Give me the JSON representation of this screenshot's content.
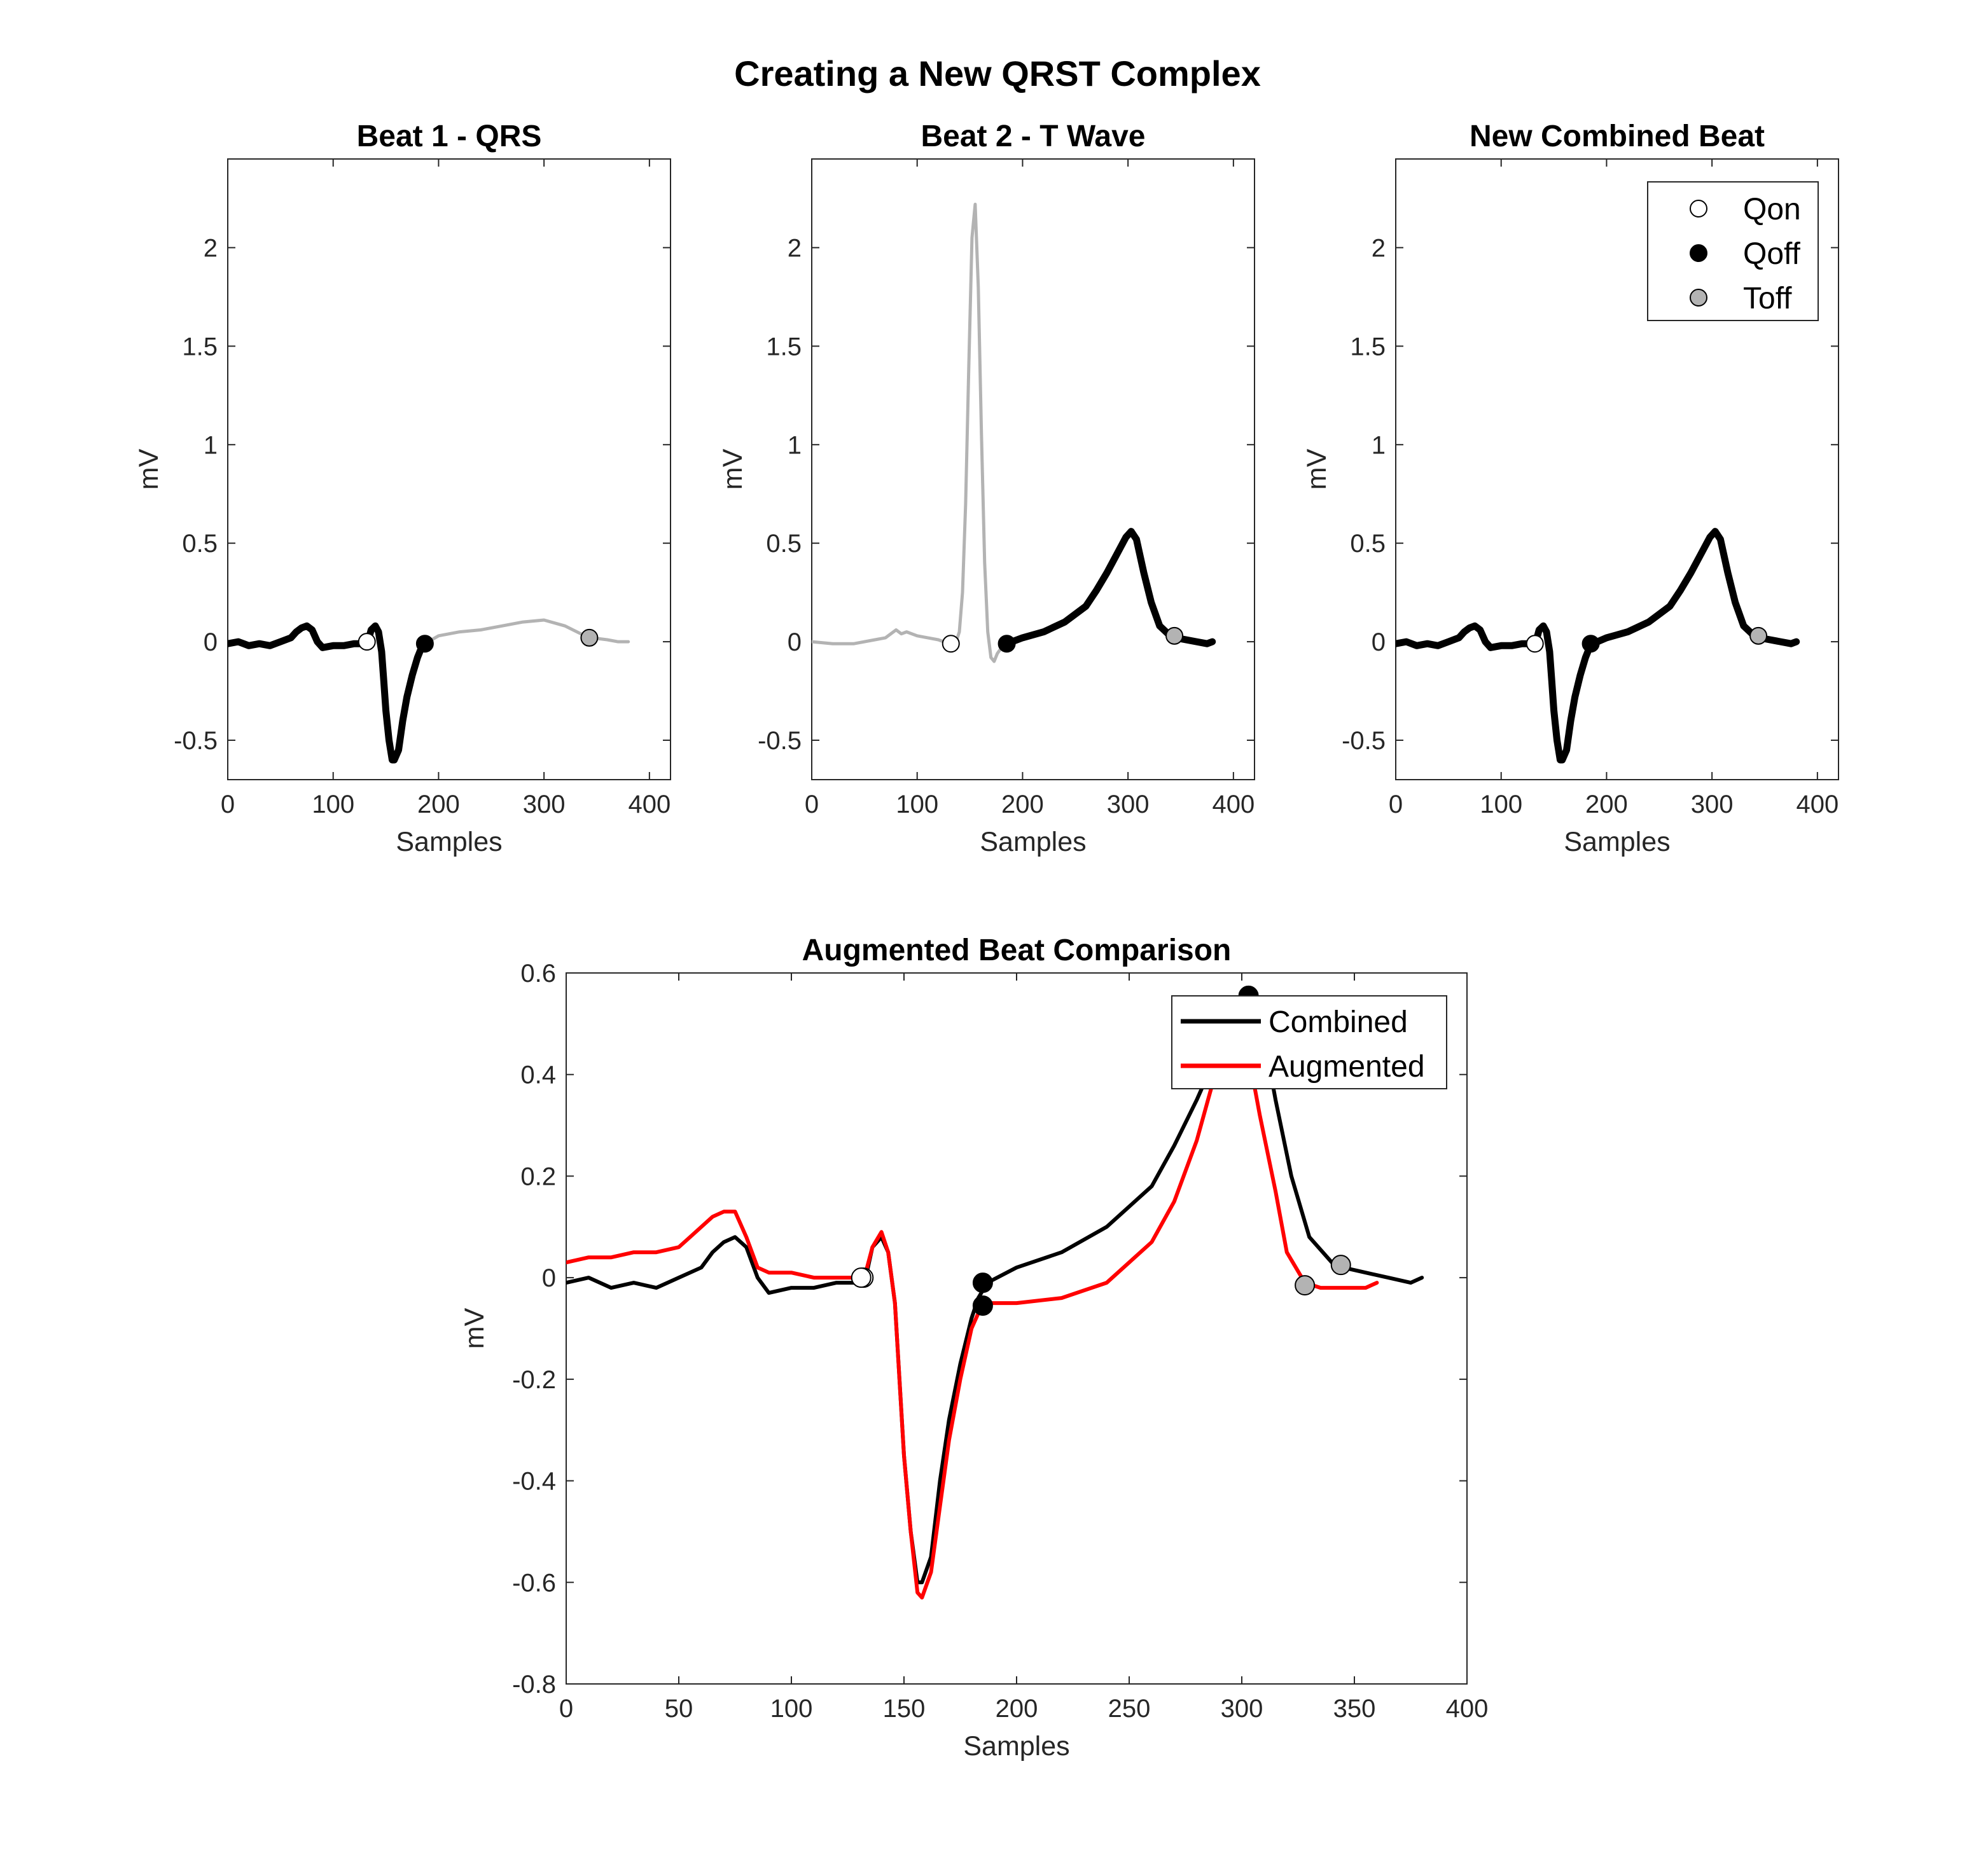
{
  "figure_title": "Creating a New QRST Complex",
  "legend_markers": [
    {
      "label": "Qon",
      "face": "#ffffff"
    },
    {
      "label": "Qoff",
      "face": "#000000"
    },
    {
      "label": "Toff",
      "face": "#b3b3b3"
    }
  ],
  "chart_data": [
    {
      "type": "line",
      "title": "Beat 1 - QRS",
      "xlabel": "Samples",
      "ylabel": "mV",
      "xlim": [
        0,
        420
      ],
      "ylim": [
        -0.7,
        2.45
      ],
      "xticks": [
        0,
        100,
        200,
        300,
        400
      ],
      "yticks": [
        -0.5,
        0,
        0.5,
        1,
        1.5,
        2
      ],
      "ytick_labels": [
        "-0.5",
        "0",
        "0.5",
        "1",
        "1.5",
        "2"
      ],
      "grid": false,
      "series": [
        {
          "color": "#b3b3b3",
          "width": "thin",
          "x": [
            187,
            200,
            220,
            240,
            260,
            280,
            300,
            320,
            335,
            345,
            360,
            370,
            380
          ],
          "y": [
            -0.01,
            0.03,
            0.05,
            0.06,
            0.08,
            0.1,
            0.11,
            0.08,
            0.04,
            0.02,
            0.01,
            0.0,
            0.0
          ]
        },
        {
          "color": "#000000",
          "width": "thick",
          "x": [
            0,
            10,
            20,
            30,
            40,
            50,
            60,
            65,
            70,
            75,
            80,
            85,
            90,
            100,
            110,
            120,
            128,
            133,
            136,
            140,
            143,
            146,
            148,
            150,
            153,
            156,
            158,
            162,
            166,
            170,
            175,
            180,
            183,
            187
          ],
          "y": [
            -0.01,
            0.0,
            -0.02,
            -0.01,
            -0.02,
            0.0,
            0.02,
            0.05,
            0.07,
            0.08,
            0.06,
            0.0,
            -0.03,
            -0.02,
            -0.02,
            -0.01,
            -0.01,
            0.0,
            0.06,
            0.08,
            0.05,
            -0.05,
            -0.2,
            -0.35,
            -0.5,
            -0.6,
            -0.6,
            -0.55,
            -0.4,
            -0.28,
            -0.17,
            -0.08,
            -0.04,
            -0.01
          ]
        }
      ],
      "markers": [
        {
          "label": "Qon",
          "x": 132,
          "y": 0.0
        },
        {
          "label": "Qoff",
          "x": 187,
          "y": -0.01
        },
        {
          "label": "Toff",
          "x": 343,
          "y": 0.02
        }
      ]
    },
    {
      "type": "line",
      "title": "Beat 2 - T Wave",
      "xlabel": "Samples",
      "ylabel": "mV",
      "xlim": [
        0,
        420
      ],
      "ylim": [
        -0.7,
        2.45
      ],
      "xticks": [
        0,
        100,
        200,
        300,
        400
      ],
      "yticks": [
        -0.5,
        0,
        0.5,
        1,
        1.5,
        2
      ],
      "ytick_labels": [
        "-0.5",
        "0",
        "0.5",
        "1",
        "1.5",
        "2"
      ],
      "grid": false,
      "series": [
        {
          "color": "#b3b3b3",
          "width": "thin",
          "x": [
            0,
            20,
            40,
            60,
            70,
            80,
            85,
            90,
            100,
            110,
            120,
            130,
            137,
            140,
            143,
            146,
            149,
            152,
            155,
            158,
            161,
            164,
            167,
            170,
            173,
            176,
            180,
            185
          ],
          "y": [
            0.0,
            -0.01,
            -0.01,
            0.01,
            0.02,
            0.06,
            0.04,
            0.05,
            0.03,
            0.02,
            0.01,
            -0.01,
            0.0,
            0.05,
            0.25,
            0.7,
            1.4,
            2.05,
            2.22,
            1.8,
            1.05,
            0.4,
            0.05,
            -0.08,
            -0.1,
            -0.06,
            -0.03,
            -0.01
          ]
        },
        {
          "color": "#000000",
          "width": "thick",
          "x": [
            185,
            200,
            220,
            240,
            260,
            270,
            280,
            290,
            298,
            303,
            308,
            315,
            322,
            330,
            340,
            345,
            355,
            365,
            375,
            380
          ],
          "y": [
            -0.01,
            0.02,
            0.05,
            0.1,
            0.18,
            0.26,
            0.35,
            0.45,
            0.53,
            0.56,
            0.52,
            0.35,
            0.2,
            0.08,
            0.03,
            0.02,
            0.01,
            0.0,
            -0.01,
            0.0
          ]
        }
      ],
      "markers": [
        {
          "label": "Qon",
          "x": 132,
          "y": -0.01
        },
        {
          "label": "Qoff",
          "x": 185,
          "y": -0.01
        },
        {
          "label": "Toff",
          "x": 344,
          "y": 0.03
        }
      ]
    },
    {
      "type": "line",
      "title": "New Combined Beat",
      "xlabel": "Samples",
      "ylabel": "mV",
      "xlim": [
        0,
        420
      ],
      "ylim": [
        -0.7,
        2.45
      ],
      "xticks": [
        0,
        100,
        200,
        300,
        400
      ],
      "yticks": [
        -0.5,
        0,
        0.5,
        1,
        1.5,
        2
      ],
      "ytick_labels": [
        "-0.5",
        "0",
        "0.5",
        "1",
        "1.5",
        "2"
      ],
      "grid": false,
      "legend": "top-right",
      "series": [
        {
          "color": "#000000",
          "width": "thick",
          "x": [
            0,
            10,
            20,
            30,
            40,
            50,
            60,
            65,
            70,
            75,
            80,
            85,
            90,
            100,
            110,
            120,
            128,
            133,
            136,
            140,
            143,
            146,
            148,
            150,
            153,
            156,
            158,
            162,
            166,
            170,
            175,
            180,
            183,
            187,
            200,
            220,
            240,
            260,
            270,
            280,
            290,
            298,
            303,
            308,
            315,
            322,
            330,
            340,
            345,
            355,
            365,
            375,
            380
          ],
          "y": [
            -0.01,
            0.0,
            -0.02,
            -0.01,
            -0.02,
            0.0,
            0.02,
            0.05,
            0.07,
            0.08,
            0.06,
            0.0,
            -0.03,
            -0.02,
            -0.02,
            -0.01,
            -0.01,
            0.0,
            0.06,
            0.08,
            0.05,
            -0.05,
            -0.2,
            -0.35,
            -0.5,
            -0.6,
            -0.6,
            -0.55,
            -0.4,
            -0.28,
            -0.17,
            -0.08,
            -0.04,
            -0.01,
            0.02,
            0.05,
            0.1,
            0.18,
            0.26,
            0.35,
            0.45,
            0.53,
            0.56,
            0.52,
            0.35,
            0.2,
            0.08,
            0.03,
            0.02,
            0.01,
            0.0,
            -0.01,
            0.0
          ]
        }
      ],
      "markers": [
        {
          "label": "Qon",
          "x": 132,
          "y": -0.01
        },
        {
          "label": "Qoff",
          "x": 185,
          "y": -0.01
        },
        {
          "label": "Toff",
          "x": 344,
          "y": 0.03
        }
      ]
    },
    {
      "type": "line",
      "title": "Augmented Beat Comparison",
      "xlabel": "Samples",
      "ylabel": "mV",
      "xlim": [
        0,
        400
      ],
      "ylim": [
        -0.8,
        0.6
      ],
      "xticks": [
        0,
        50,
        100,
        150,
        200,
        250,
        300,
        350,
        400
      ],
      "yticks": [
        -0.8,
        -0.6,
        -0.4,
        -0.2,
        0,
        0.2,
        0.4,
        0.6
      ],
      "ytick_labels": [
        "-0.8",
        "-0.6",
        "-0.4",
        "-0.2",
        "0",
        "0.2",
        "0.4",
        "0.6"
      ],
      "grid": false,
      "legend": "top-right",
      "series": [
        {
          "name": "Combined",
          "color": "#000000",
          "width": "medium",
          "x": [
            0,
            10,
            20,
            30,
            40,
            50,
            60,
            65,
            70,
            75,
            80,
            85,
            90,
            100,
            110,
            120,
            128,
            133,
            136,
            140,
            143,
            146,
            148,
            150,
            153,
            156,
            158,
            162,
            166,
            170,
            175,
            180,
            183,
            187,
            200,
            220,
            240,
            260,
            270,
            280,
            290,
            298,
            303,
            308,
            315,
            322,
            330,
            340,
            345,
            355,
            365,
            375,
            380
          ],
          "y": [
            -0.01,
            0.0,
            -0.02,
            -0.01,
            -0.02,
            0.0,
            0.02,
            0.05,
            0.07,
            0.08,
            0.06,
            0.0,
            -0.03,
            -0.02,
            -0.02,
            -0.01,
            -0.01,
            0.0,
            0.06,
            0.08,
            0.05,
            -0.05,
            -0.2,
            -0.35,
            -0.5,
            -0.6,
            -0.6,
            -0.55,
            -0.4,
            -0.28,
            -0.17,
            -0.08,
            -0.04,
            -0.01,
            0.02,
            0.05,
            0.1,
            0.18,
            0.26,
            0.35,
            0.45,
            0.53,
            0.56,
            0.52,
            0.35,
            0.2,
            0.08,
            0.03,
            0.02,
            0.01,
            0.0,
            -0.01,
            0.0
          ]
        },
        {
          "name": "Augmented",
          "color": "#ff0000",
          "width": "medium",
          "x": [
            0,
            10,
            20,
            30,
            40,
            50,
            55,
            60,
            65,
            70,
            75,
            80,
            85,
            90,
            100,
            110,
            120,
            128,
            133,
            136,
            140,
            143,
            146,
            148,
            150,
            153,
            156,
            158,
            162,
            166,
            170,
            175,
            180,
            185,
            200,
            220,
            240,
            260,
            270,
            280,
            285,
            290,
            293,
            298,
            303,
            308,
            315,
            320,
            328,
            335,
            345,
            355,
            360
          ],
          "y": [
            0.03,
            0.04,
            0.04,
            0.05,
            0.05,
            0.06,
            0.08,
            0.1,
            0.12,
            0.13,
            0.13,
            0.08,
            0.02,
            0.01,
            0.01,
            0.0,
            0.0,
            0.0,
            0.01,
            0.06,
            0.09,
            0.05,
            -0.05,
            -0.2,
            -0.35,
            -0.5,
            -0.62,
            -0.63,
            -0.58,
            -0.45,
            -0.32,
            -0.2,
            -0.1,
            -0.05,
            -0.05,
            -0.04,
            -0.01,
            0.07,
            0.15,
            0.27,
            0.35,
            0.43,
            0.5,
            0.52,
            0.44,
            0.32,
            0.17,
            0.05,
            -0.01,
            -0.02,
            -0.02,
            -0.02,
            -0.01
          ]
        }
      ],
      "markers": [
        {
          "label": "Qon",
          "x": 132,
          "y": 0.0
        },
        {
          "label": "Qon",
          "x": 131,
          "y": 0.0
        },
        {
          "label": "Qoff",
          "x": 185,
          "y": -0.01
        },
        {
          "label": "Qoff",
          "x": 185,
          "y": -0.055
        },
        {
          "label": "Qoff",
          "x": 303,
          "y": 0.555
        },
        {
          "label": "Toff",
          "x": 344,
          "y": 0.025
        },
        {
          "label": "Toff",
          "x": 328,
          "y": -0.015
        }
      ]
    }
  ]
}
